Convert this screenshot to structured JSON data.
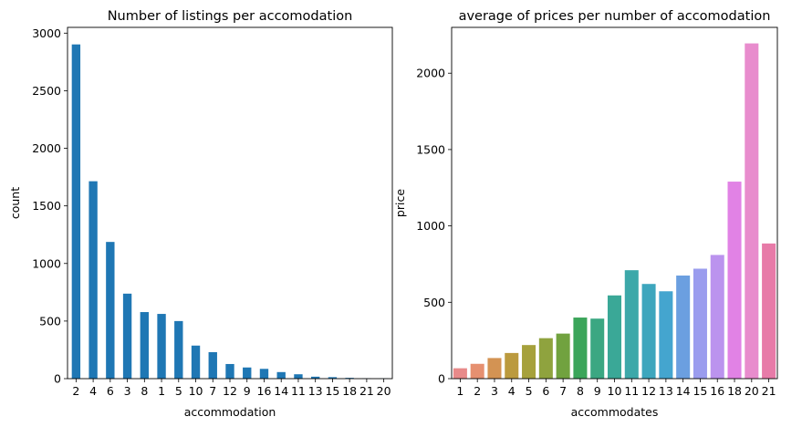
{
  "chart_data": [
    {
      "type": "bar",
      "title": "Number of listings per accomodation",
      "xlabel": "accommodation",
      "ylabel": "count",
      "categories": [
        "2",
        "4",
        "6",
        "3",
        "8",
        "1",
        "5",
        "10",
        "7",
        "12",
        "9",
        "16",
        "14",
        "11",
        "13",
        "15",
        "18",
        "21",
        "20"
      ],
      "values": [
        2902,
        1714,
        1187,
        738,
        578,
        562,
        500,
        287,
        230,
        127,
        97,
        85,
        57,
        38,
        17,
        13,
        7,
        3,
        2
      ],
      "ylim": [
        0,
        3050
      ],
      "yticks": [
        0,
        500,
        1000,
        1500,
        2000,
        2500,
        3000
      ],
      "color": "#1f77b4",
      "grid": false,
      "legend": "none"
    },
    {
      "type": "bar",
      "title": "average of prices per number of accomodation",
      "xlabel": "accommodates",
      "ylabel": "price",
      "categories": [
        "1",
        "2",
        "3",
        "4",
        "5",
        "6",
        "7",
        "8",
        "9",
        "10",
        "11",
        "12",
        "13",
        "14",
        "15",
        "16",
        "18",
        "20",
        "21"
      ],
      "values": [
        68,
        97,
        135,
        168,
        220,
        265,
        295,
        400,
        393,
        545,
        710,
        620,
        572,
        675,
        720,
        810,
        1290,
        2195,
        885
      ],
      "ylim": [
        0,
        2300
      ],
      "yticks": [
        0,
        500,
        1000,
        1500,
        2000
      ],
      "colors": [
        "#e88a8a",
        "#e69070",
        "#d39353",
        "#bb9a3e",
        "#a6a13c",
        "#8fa33e",
        "#71a23f",
        "#3ba55a",
        "#3ba782",
        "#3aa897",
        "#3ca8a9",
        "#3da6bd",
        "#44a5cf",
        "#6b9fe0",
        "#9a9cee",
        "#bb93ee",
        "#e182e5",
        "#e88ccd",
        "#e77ba8"
      ],
      "grid": false,
      "legend": "none"
    }
  ]
}
